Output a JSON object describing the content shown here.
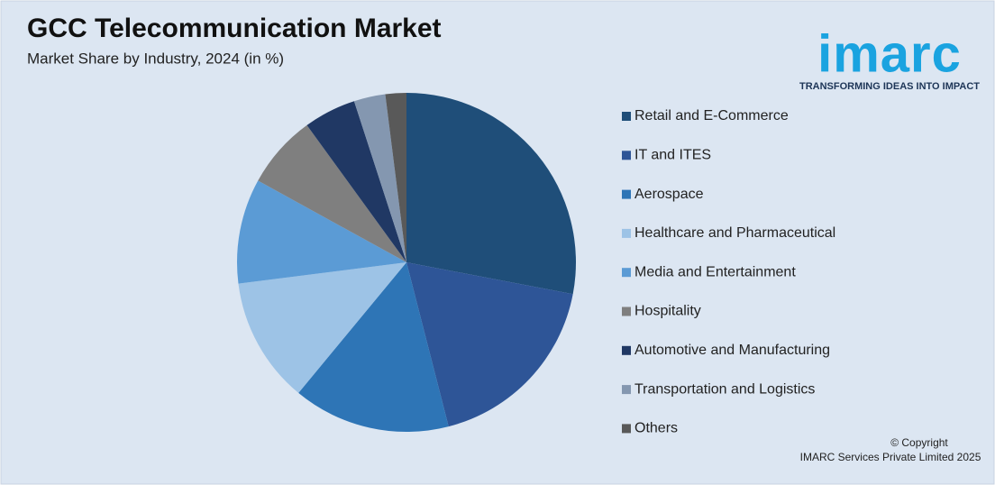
{
  "chart_data": {
    "type": "pie",
    "title": "GCC Telecommunication Market",
    "subtitle": "Market Share by Industry, 2024 (in %)",
    "categories": [
      "Retail and E-Commerce",
      "IT and ITES",
      "Aerospace",
      "Healthcare and Pharmaceutical",
      "Media and Entertainment",
      "Hospitality",
      "Automotive and Manufacturing",
      "Transportation and Logistics",
      "Others"
    ],
    "values": [
      28,
      18,
      15,
      12,
      10,
      7,
      5,
      3,
      2
    ],
    "colors": [
      "#1f4e79",
      "#2e5597",
      "#2e75b6",
      "#9dc3e6",
      "#5b9bd5",
      "#7f7f7f",
      "#203864",
      "#8497b0",
      "#595959"
    ]
  },
  "logo": {
    "name": "imarc",
    "tagline": "TRANSFORMING IDEAS INTO IMPACT"
  },
  "copyright": [
    "© Copyright",
    "IMARC Services Private Limited 2025"
  ]
}
